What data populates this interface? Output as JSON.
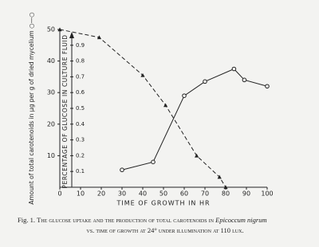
{
  "chart_data": {
    "type": "line",
    "xlabel": "TIME OF GROWTH IN HR",
    "ylabel": "Amount of total carotenoids in μg per g of dried mycelium ○—○",
    "y2label": "PERCENTAGE OF GLUCOSE IN CULTURE FLUID",
    "xlim": [
      0,
      100
    ],
    "xticks": [
      0,
      10,
      20,
      30,
      40,
      50,
      60,
      70,
      80,
      90,
      100
    ],
    "ylim": [
      0,
      50
    ],
    "yticks": [
      10,
      20,
      30,
      40,
      50
    ],
    "y2lim": [
      0,
      1
    ],
    "y2ticks": [
      0.1,
      0.2,
      0.3,
      0.4,
      0.5,
      0.6,
      0.7,
      0.8,
      0.9
    ],
    "grid": false,
    "series": [
      {
        "color": "#222222",
        "marker": "circle",
        "dash": false,
        "x": [
          30,
          45,
          60,
          70,
          84,
          89,
          100
        ],
        "values": [
          5.5,
          8,
          29,
          33.5,
          37.5,
          34,
          32
        ]
      },
      {
        "color": "#222222",
        "marker": "triangle",
        "dash": true,
        "axis": "y2",
        "x": [
          0,
          19,
          40,
          51,
          66,
          77,
          80
        ],
        "values": [
          1.0,
          0.95,
          0.71,
          0.52,
          0.2,
          0.065,
          0
        ]
      }
    ],
    "caption": {
      "label": "Fig. 1.",
      "text": "The glucose uptake and the production of total carotenoids in",
      "species": "Epicoccum nigrum",
      "line2": "vs. time of growth at 24° under illumination at 110 lux."
    }
  }
}
